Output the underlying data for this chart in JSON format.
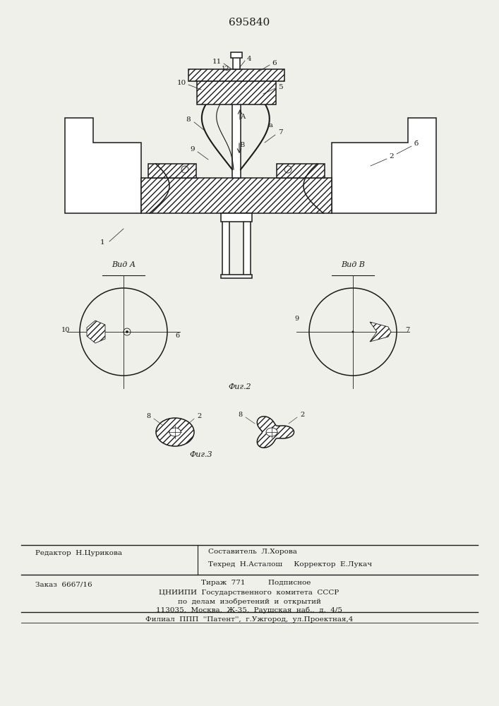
{
  "patent_number": "695840",
  "bg_color": "#f0f0eb",
  "line_color": "#1a1a1a",
  "footer": {
    "editor": "Редактор  Н.Цурикова",
    "compiler": "Составитель  Л.Хорова",
    "techred": "Техред  Н.Асталош",
    "corrector": "Корректор  Е.Лукач",
    "order": "Заказ  6667/16",
    "tirazh": "Тираж  771",
    "podpisnoe": "Подписное",
    "orgname": "ЦНИИПИ  Государственного  комитета  СССР",
    "orgline2": "по  делам  изобретений  и  открытий",
    "address": "113035,  Москва,  Ж-35,  Раушская  наб.,  д.  4/5",
    "filial": "Филиал  ППП  ''Патент'',  г.Ужгород,  ул.Проектная,4"
  }
}
